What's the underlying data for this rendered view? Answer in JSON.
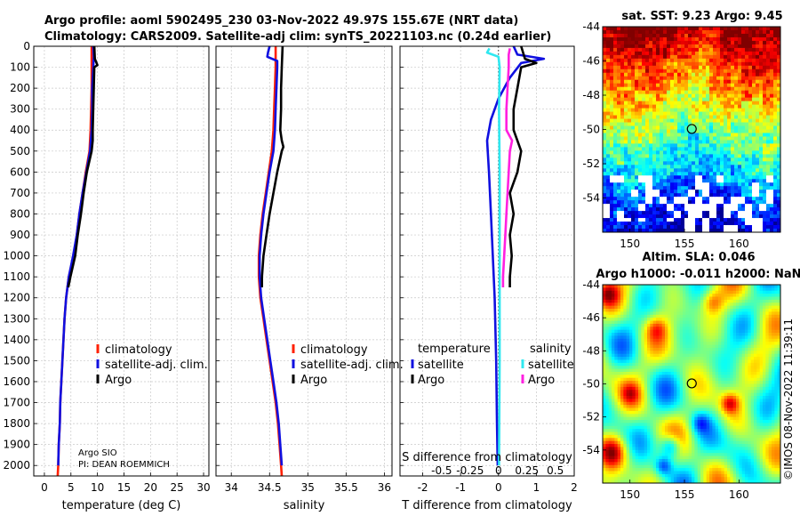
{
  "header": {
    "title_line1": "Argo profile: aoml 5902495_230 03-Nov-2022 49.97S 155.67E (NRT data)",
    "title_line2": "Climatology: CARS2009. Satellite-adj clim: synTS_20221103.nc (0.24d earlier)"
  },
  "credit": {
    "line1": "Argo SIO",
    "line2": "PI: DEAN ROEMMICH"
  },
  "watermark": "©IMOS 08-Nov-2022 11:39:11",
  "colors": {
    "climatology": "#ff2000",
    "satellite": "#1010e0",
    "argo": "#000000",
    "s_satellite": "#30e8f0",
    "s_argo": "#ff20e0"
  },
  "depth_axis": {
    "ticks": [
      "0",
      "100",
      "200",
      "300",
      "400",
      "500",
      "600",
      "700",
      "800",
      "900",
      "1000",
      "1100",
      "1200",
      "1300",
      "1400",
      "1500",
      "1600",
      "1700",
      "1800",
      "1900",
      "2000"
    ],
    "range": [
      0,
      2050
    ]
  },
  "chart_data": [
    {
      "type": "line",
      "id": "temperature",
      "xlabel": "temperature (deg C)",
      "xlim": [
        -2,
        31
      ],
      "xticks": [
        "0",
        "5",
        "10",
        "15",
        "20",
        "25",
        "30"
      ],
      "xtick_values": [
        0,
        5,
        10,
        15,
        20,
        25,
        30
      ],
      "legend": [
        "climatology",
        "satellite-adj. clim.",
        "Argo"
      ],
      "series": [
        {
          "name": "climatology",
          "color": "#ff2000",
          "points": [
            [
              8.9,
              0
            ],
            [
              8.9,
              40
            ],
            [
              8.9,
              100
            ],
            [
              8.9,
              200
            ],
            [
              8.8,
              300
            ],
            [
              8.7,
              400
            ],
            [
              8.5,
              500
            ],
            [
              7.8,
              600
            ],
            [
              7.2,
              700
            ],
            [
              6.6,
              800
            ],
            [
              6.1,
              900
            ],
            [
              5.5,
              1000
            ],
            [
              4.6,
              1100
            ],
            [
              4.1,
              1200
            ],
            [
              3.8,
              1300
            ],
            [
              3.6,
              1400
            ],
            [
              3.4,
              1500
            ],
            [
              3.2,
              1600
            ],
            [
              3.0,
              1700
            ],
            [
              2.9,
              1800
            ],
            [
              2.7,
              1900
            ],
            [
              2.6,
              2000
            ],
            [
              2.5,
              2050
            ]
          ]
        },
        {
          "name": "satellite-adj. clim.",
          "color": "#1010e0",
          "points": [
            [
              9.2,
              0
            ],
            [
              9.3,
              50
            ],
            [
              9.2,
              100
            ],
            [
              9.0,
              200
            ],
            [
              9.0,
              300
            ],
            [
              8.9,
              400
            ],
            [
              8.6,
              500
            ],
            [
              7.9,
              600
            ],
            [
              7.2,
              700
            ],
            [
              6.6,
              800
            ],
            [
              6.1,
              900
            ],
            [
              5.4,
              1000
            ],
            [
              4.6,
              1100
            ],
            [
              4.1,
              1200
            ],
            [
              3.8,
              1300
            ],
            [
              3.6,
              1400
            ],
            [
              3.4,
              1500
            ],
            [
              3.2,
              1600
            ],
            [
              3.0,
              1700
            ],
            [
              2.9,
              1800
            ],
            [
              2.7,
              1900
            ],
            [
              2.6,
              2000
            ]
          ]
        },
        {
          "name": "Argo",
          "color": "#000000",
          "points": [
            [
              9.4,
              0
            ],
            [
              9.5,
              60
            ],
            [
              10.0,
              90
            ],
            [
              9.4,
              100
            ],
            [
              9.3,
              200
            ],
            [
              9.2,
              300
            ],
            [
              9.1,
              400
            ],
            [
              9.1,
              450
            ],
            [
              8.9,
              500
            ],
            [
              8.0,
              600
            ],
            [
              7.4,
              700
            ],
            [
              6.9,
              800
            ],
            [
              6.3,
              900
            ],
            [
              5.8,
              1000
            ],
            [
              4.9,
              1100
            ],
            [
              4.5,
              1150
            ]
          ]
        }
      ]
    },
    {
      "type": "line",
      "id": "salinity",
      "xlabel": "salinity",
      "xlim": [
        33.8,
        36.1
      ],
      "xticks": [
        "34",
        "34.5",
        "35",
        "35.5",
        "36"
      ],
      "xtick_values": [
        34,
        34.5,
        35,
        35.5,
        36
      ],
      "legend": [
        "climatology",
        "satellite-adj. clim.",
        "Argo"
      ],
      "series": [
        {
          "name": "climatology",
          "color": "#ff2000",
          "points": [
            [
              34.58,
              0
            ],
            [
              34.58,
              100
            ],
            [
              34.57,
              200
            ],
            [
              34.56,
              300
            ],
            [
              34.55,
              400
            ],
            [
              34.53,
              500
            ],
            [
              34.49,
              600
            ],
            [
              34.45,
              700
            ],
            [
              34.41,
              800
            ],
            [
              34.38,
              900
            ],
            [
              34.36,
              1000
            ],
            [
              34.36,
              1100
            ],
            [
              34.38,
              1200
            ],
            [
              34.42,
              1300
            ],
            [
              34.46,
              1400
            ],
            [
              34.5,
              1500
            ],
            [
              34.54,
              1600
            ],
            [
              34.58,
              1700
            ],
            [
              34.61,
              1800
            ],
            [
              34.63,
              1900
            ],
            [
              34.65,
              2000
            ],
            [
              34.66,
              2050
            ]
          ]
        },
        {
          "name": "satellite-adj. clim.",
          "color": "#1010e0",
          "points": [
            [
              34.5,
              0
            ],
            [
              34.48,
              30
            ],
            [
              34.47,
              50
            ],
            [
              34.6,
              70
            ],
            [
              34.6,
              100
            ],
            [
              34.59,
              200
            ],
            [
              34.58,
              300
            ],
            [
              34.57,
              400
            ],
            [
              34.55,
              500
            ],
            [
              34.5,
              600
            ],
            [
              34.46,
              700
            ],
            [
              34.42,
              800
            ],
            [
              34.39,
              900
            ],
            [
              34.37,
              1000
            ],
            [
              34.37,
              1100
            ],
            [
              34.39,
              1200
            ],
            [
              34.43,
              1300
            ],
            [
              34.47,
              1400
            ],
            [
              34.51,
              1500
            ],
            [
              34.55,
              1600
            ],
            [
              34.59,
              1700
            ],
            [
              34.62,
              1800
            ],
            [
              34.64,
              1900
            ],
            [
              34.66,
              2000
            ]
          ]
        },
        {
          "name": "Argo",
          "color": "#000000",
          "points": [
            [
              34.67,
              0
            ],
            [
              34.66,
              100
            ],
            [
              34.65,
              200
            ],
            [
              34.65,
              300
            ],
            [
              34.64,
              400
            ],
            [
              34.66,
              450
            ],
            [
              34.68,
              480
            ],
            [
              34.66,
              500
            ],
            [
              34.6,
              600
            ],
            [
              34.55,
              700
            ],
            [
              34.5,
              800
            ],
            [
              34.46,
              900
            ],
            [
              34.42,
              1000
            ],
            [
              34.4,
              1100
            ],
            [
              34.4,
              1150
            ]
          ]
        }
      ]
    },
    {
      "type": "line",
      "id": "difference",
      "xlabel": "T difference from climatology",
      "xlabel2": "S difference from climatology",
      "xlim": [
        -2.6,
        2.0
      ],
      "xticks": [
        "-2",
        "-1",
        "0",
        "1",
        "2"
      ],
      "xtick_values": [
        -2,
        -1,
        0,
        1,
        2
      ],
      "sticks": [
        "-0.5",
        "-0.25",
        "0",
        "0.25",
        "0.5"
      ],
      "stick_values": [
        -0.5,
        -0.25,
        0,
        0.25,
        0.5
      ],
      "legend_left_title": "temperature",
      "legend_right_title": "salinity",
      "legend": [
        "satellite",
        "Argo",
        "satellite",
        "Argo"
      ],
      "series": [
        {
          "name": "temperature satellite",
          "color": "#1010e0",
          "points": [
            [
              0.4,
              0
            ],
            [
              0.5,
              40
            ],
            [
              1.2,
              60
            ],
            [
              0.6,
              80
            ],
            [
              0.3,
              150
            ],
            [
              0.0,
              250
            ],
            [
              -0.2,
              350
            ],
            [
              -0.3,
              450
            ],
            [
              -0.25,
              600
            ],
            [
              -0.2,
              800
            ],
            [
              -0.15,
              1000
            ],
            [
              -0.1,
              1200
            ],
            [
              -0.06,
              1500
            ],
            [
              -0.04,
              1800
            ],
            [
              -0.02,
              2000
            ]
          ]
        },
        {
          "name": "temperature Argo",
          "color": "#000000",
          "points": [
            [
              0.6,
              0
            ],
            [
              0.7,
              60
            ],
            [
              1.0,
              80
            ],
            [
              0.6,
              100
            ],
            [
              0.5,
              200
            ],
            [
              0.4,
              300
            ],
            [
              0.4,
              400
            ],
            [
              0.6,
              500
            ],
            [
              0.5,
              600
            ],
            [
              0.3,
              700
            ],
            [
              0.4,
              800
            ],
            [
              0.3,
              900
            ],
            [
              0.35,
              1000
            ],
            [
              0.3,
              1100
            ],
            [
              0.3,
              1150
            ]
          ]
        },
        {
          "name": "salinity satellite",
          "color": "#30e8f0",
          "points": [
            [
              -0.08,
              10
            ],
            [
              -0.1,
              30
            ],
            [
              0.0,
              50
            ],
            [
              0.01,
              100
            ],
            [
              0.005,
              300
            ],
            [
              0.01,
              600
            ],
            [
              0.01,
              1000
            ],
            [
              0.01,
              1500
            ],
            [
              0.005,
              2000
            ]
          ]
        },
        {
          "name": "salinity Argo",
          "color": "#ff20e0",
          "points": [
            [
              0.1,
              10
            ],
            [
              0.09,
              40
            ],
            [
              0.09,
              100
            ],
            [
              0.08,
              200
            ],
            [
              0.07,
              300
            ],
            [
              0.07,
              400
            ],
            [
              0.12,
              450
            ],
            [
              0.1,
              500
            ],
            [
              0.09,
              600
            ],
            [
              0.08,
              700
            ],
            [
              0.07,
              800
            ],
            [
              0.06,
              900
            ],
            [
              0.05,
              1000
            ],
            [
              0.04,
              1100
            ],
            [
              0.04,
              1150
            ]
          ]
        }
      ]
    },
    {
      "type": "heatmap",
      "id": "sst_map",
      "title": "sat. SST: 9.23 Argo: 9.45",
      "xticks": [
        "150",
        "155",
        "160"
      ],
      "xtick_values": [
        150,
        155,
        160
      ],
      "yticks": [
        "-44",
        "-46",
        "-48",
        "-50",
        "-52",
        "-54"
      ],
      "ytick_values": [
        -44,
        -46,
        -48,
        -50,
        -52,
        -54
      ],
      "xlim": [
        147.5,
        163.8
      ],
      "ylim": [
        -56.0,
        -44.0
      ],
      "float_position": [
        155.67,
        -49.97
      ]
    },
    {
      "type": "heatmap",
      "id": "sla_map",
      "title": "Altim. SLA: 0.046",
      "title2": "Argo h1000: -0.011 h2000: NaN",
      "xticks": [
        "150",
        "155",
        "160"
      ],
      "xtick_values": [
        150,
        155,
        160
      ],
      "yticks": [
        "-44",
        "-46",
        "-48",
        "-50",
        "-52",
        "-54"
      ],
      "ytick_values": [
        -44,
        -46,
        -48,
        -50,
        -52,
        -54
      ],
      "xlim": [
        147.5,
        163.8
      ],
      "ylim": [
        -56.0,
        -44.0
      ],
      "float_position": [
        155.67,
        -49.97
      ]
    }
  ]
}
